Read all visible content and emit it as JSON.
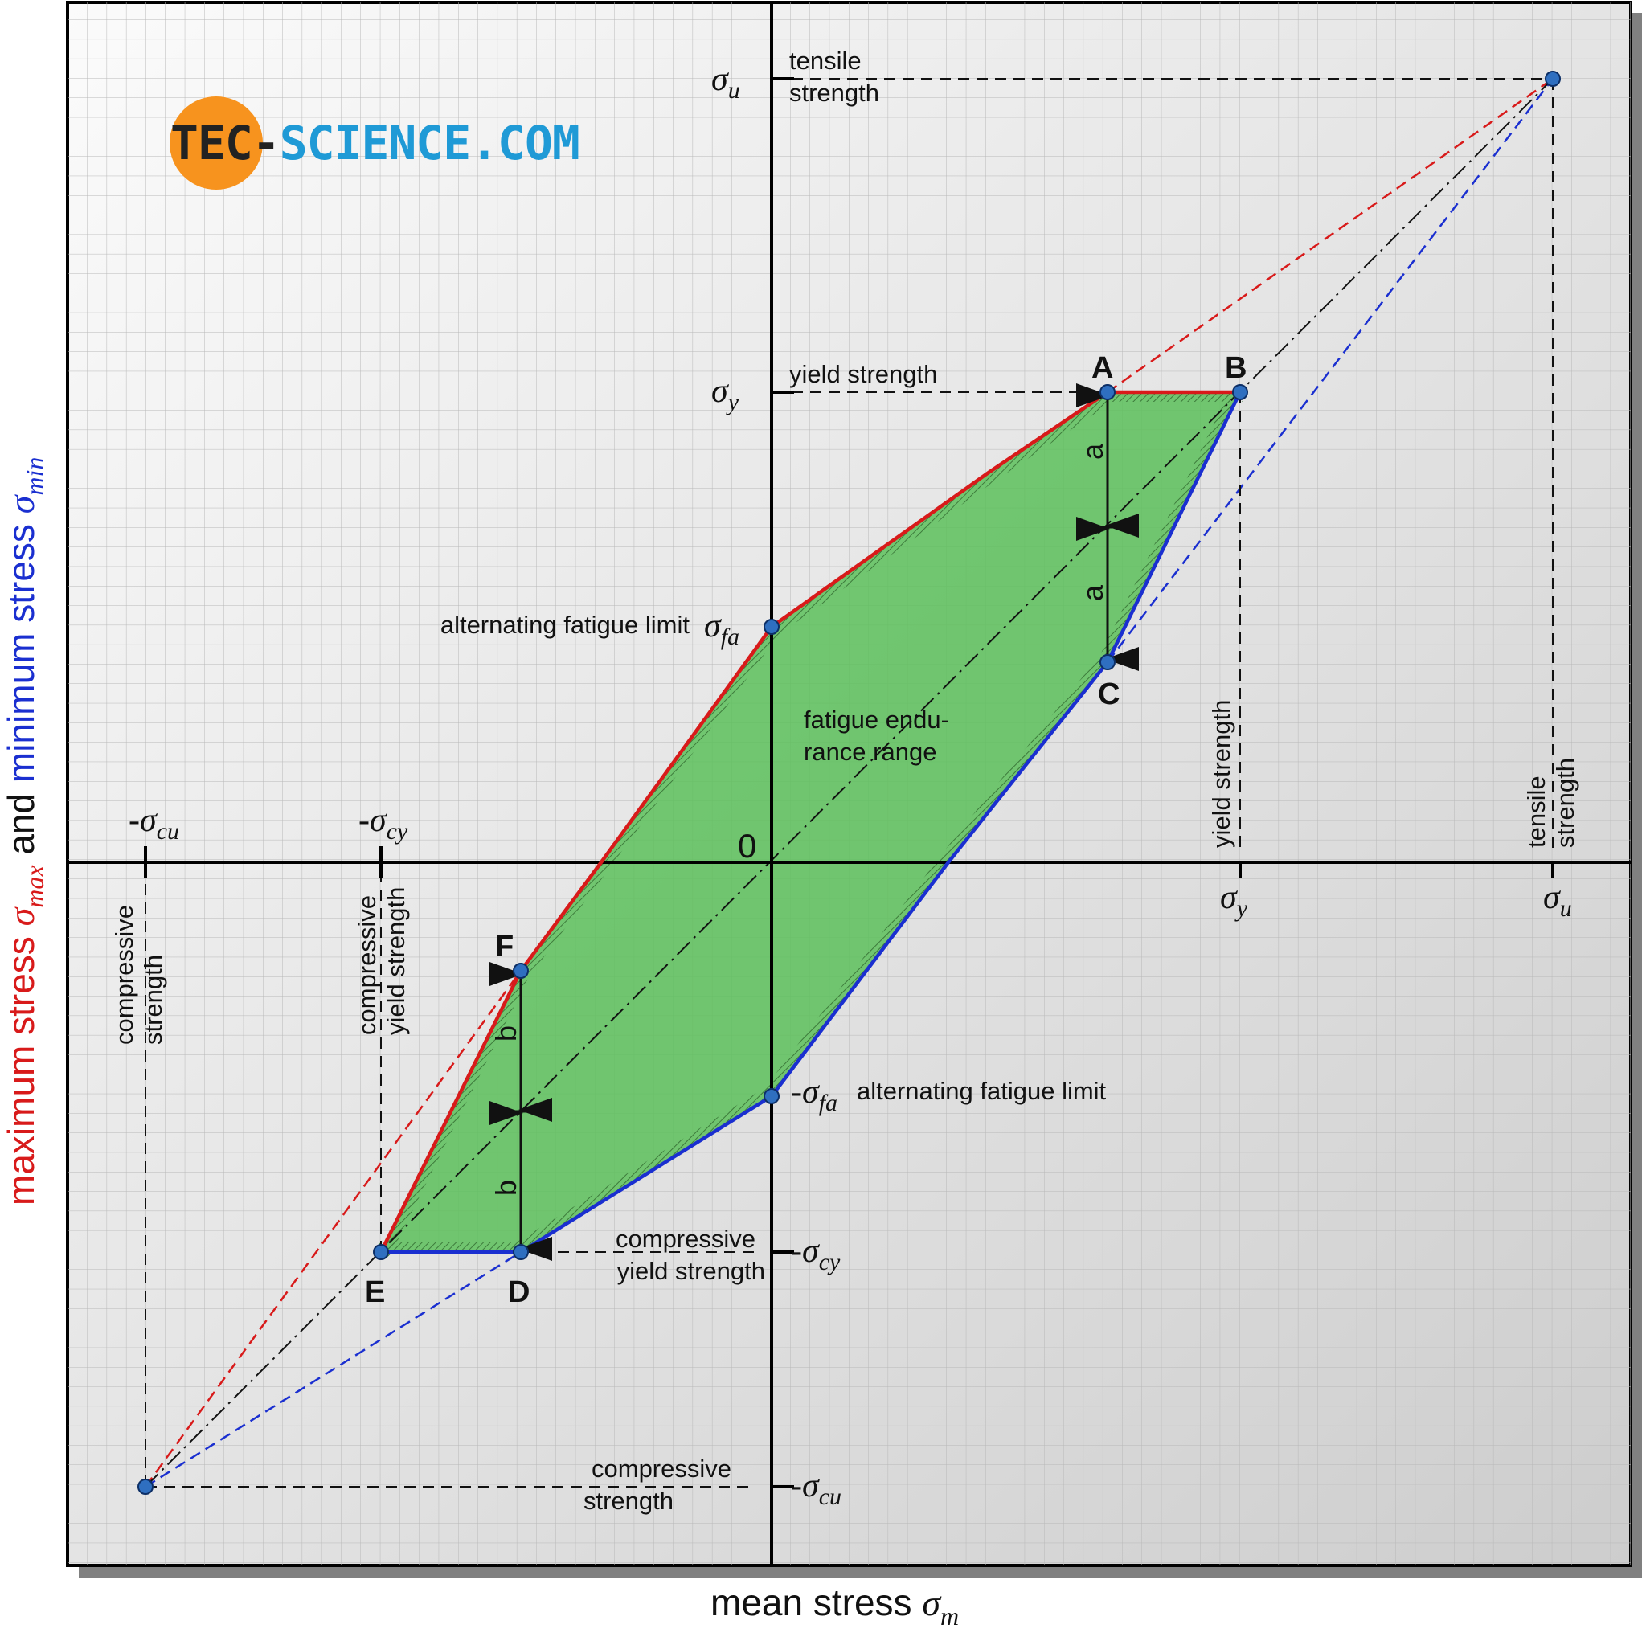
{
  "diagram": {
    "x_axis_title": "mean stress",
    "x_axis_symbol": "σ",
    "x_axis_symbol_sub": "m",
    "y_axis_title_max": "maximum stress",
    "y_axis_title_max_symbol": "σ",
    "y_axis_title_max_sub": "max",
    "y_axis_title_and": "and",
    "y_axis_title_min": "minimum stress",
    "y_axis_title_min_symbol": "σ",
    "y_axis_title_min_sub": "min",
    "origin_label": "0",
    "region_label_line1": "fatigue endu-",
    "region_label_line2": "rance range",
    "logo": {
      "part1": "TEC-",
      "part2": "SCIENCE",
      "part3": ".COM"
    },
    "y_ticks": {
      "su": {
        "sym": "σ",
        "sub": "u",
        "desc1": "tensile",
        "desc2": "strength"
      },
      "sy": {
        "sym": "σ",
        "sub": "y",
        "desc": "yield strength"
      },
      "sfa": {
        "sym": "σ",
        "sub": "fa",
        "desc": "alternating fatigue limit"
      },
      "neg_sfa": {
        "sym": "-σ",
        "sub": "fa",
        "desc": "alternating fatigue limit"
      },
      "neg_scy": {
        "sym": "-σ",
        "sub": "cy",
        "desc1": "compressive",
        "desc2": "yield strength"
      },
      "neg_scu": {
        "sym": "-σ",
        "sub": "cu",
        "desc1": "compressive",
        "desc2": "strength"
      }
    },
    "x_ticks": {
      "sy": {
        "sym": "σ",
        "sub": "y",
        "desc": "yield strength"
      },
      "su": {
        "sym": "σ",
        "sub": "u",
        "desc1": "tensile",
        "desc2": "strength"
      },
      "neg_scu": {
        "sym": "-σ",
        "sub": "cu",
        "desc1": "compressive",
        "desc2": "strength"
      },
      "neg_scy": {
        "sym": "-σ",
        "sub": "cy",
        "desc1": "compressive",
        "desc2": "yield strength"
      }
    },
    "points": {
      "A": "A",
      "B": "B",
      "C": "C",
      "D": "D",
      "E": "E",
      "F": "F"
    },
    "dimension_labels": {
      "a": "a",
      "b": "b"
    },
    "colors": {
      "max_line": "#d81a1a",
      "min_line": "#1a2fd0",
      "fill": "#5cc05a",
      "point": "#2f6fc0",
      "logo_circle": "#f7931e",
      "logo_blue": "#1f9ad6"
    }
  }
}
